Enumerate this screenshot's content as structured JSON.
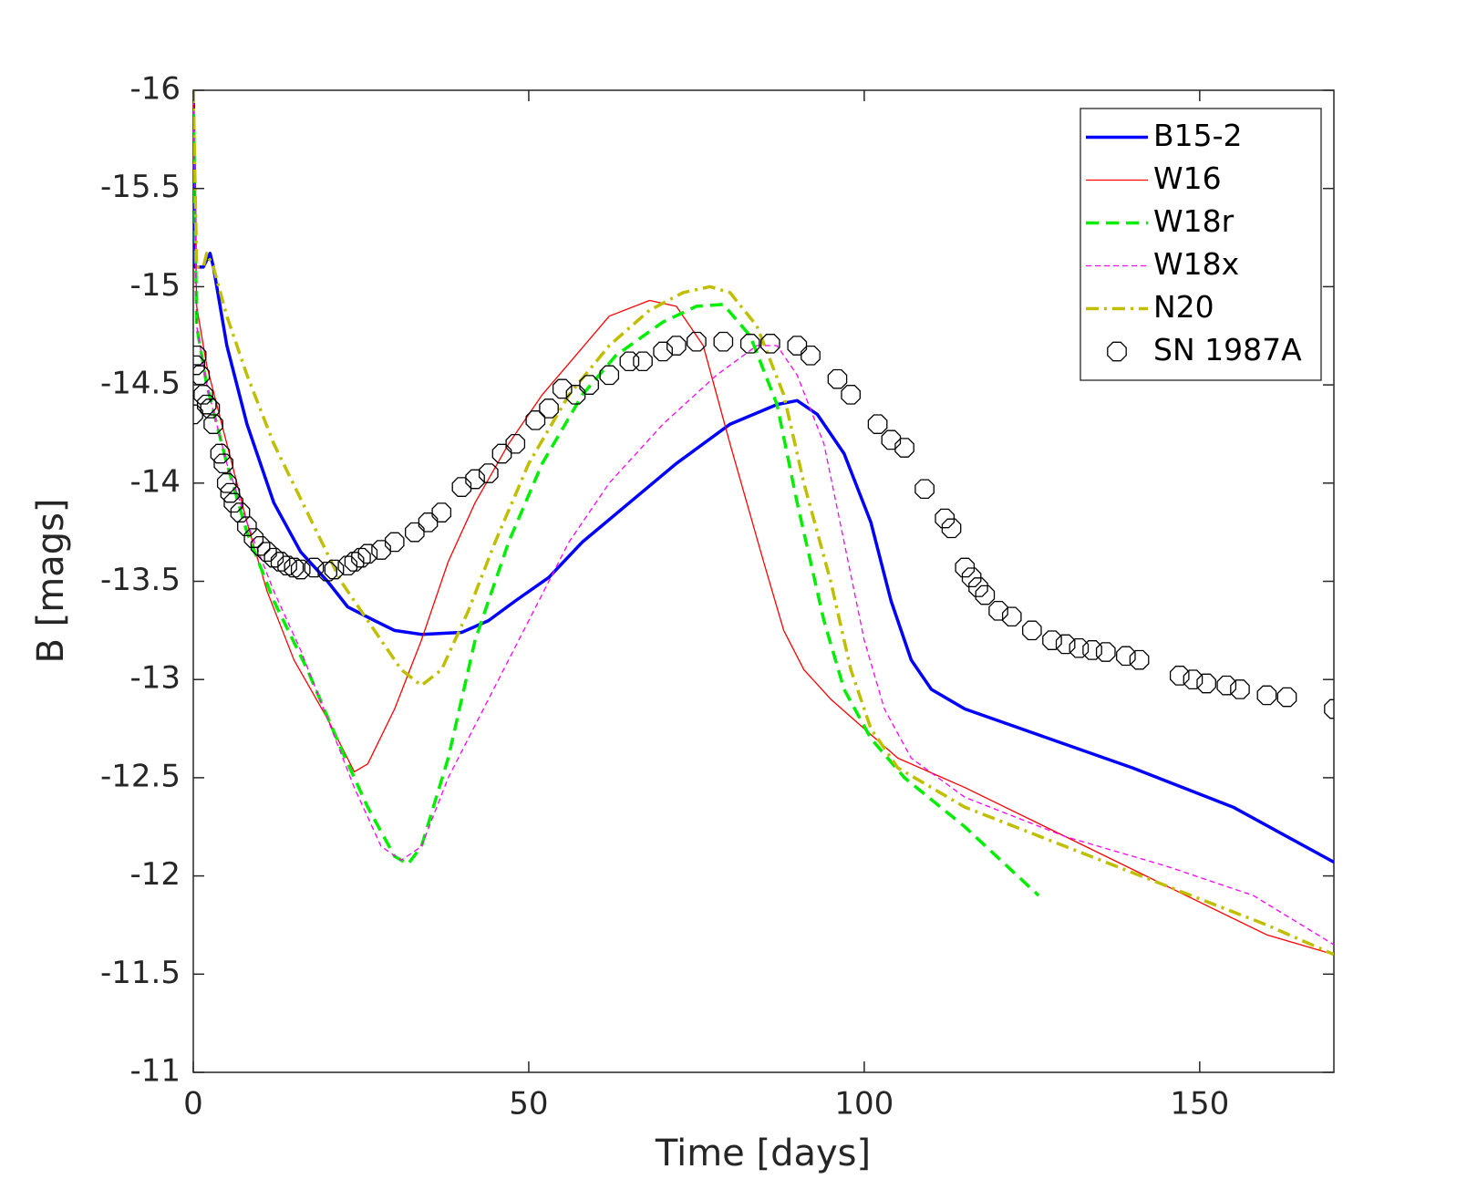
{
  "chart_data": {
    "type": "line",
    "xlabel": "Time [days]",
    "ylabel": "B [mags]",
    "xlim": [
      0,
      170
    ],
    "ylim": [
      -16,
      -11
    ],
    "y_inverted": true,
    "xticks": [
      0,
      50,
      100,
      150
    ],
    "yticks": [
      -16,
      -15.5,
      -15,
      -14.5,
      -14,
      -13.5,
      -13,
      -12.5,
      -12,
      -11.5,
      -11
    ],
    "grid": false,
    "legend": "upper right",
    "series": [
      {
        "name": "B15-2",
        "color": "#0000ff",
        "linestyle": "solid",
        "linewidth": 3.5,
        "x": [
          0,
          0.3,
          1.5,
          2.5,
          3,
          5,
          8,
          12,
          16,
          20,
          23,
          27,
          30,
          34,
          40,
          44,
          48,
          53,
          58,
          65,
          72,
          80,
          87,
          90,
          93,
          97,
          101,
          104,
          107,
          110,
          115,
          125,
          140,
          155,
          170
        ],
        "values": [
          -16,
          -15.1,
          -15.1,
          -15.17,
          -15.1,
          -14.7,
          -14.3,
          -13.9,
          -13.65,
          -13.5,
          -13.37,
          -13.3,
          -13.25,
          -13.23,
          -13.24,
          -13.3,
          -13.4,
          -13.52,
          -13.7,
          -13.9,
          -14.1,
          -14.3,
          -14.4,
          -14.42,
          -14.35,
          -14.15,
          -13.8,
          -13.4,
          -13.1,
          -12.95,
          -12.85,
          -12.73,
          -12.55,
          -12.35,
          -12.07
        ]
      },
      {
        "name": "W16",
        "color": "#ff0000",
        "linestyle": "solid",
        "linewidth": 1.3,
        "x": [
          0,
          0.5,
          2,
          5,
          8,
          11,
          15,
          20,
          24,
          26,
          30,
          34,
          38,
          42,
          47,
          52,
          57,
          62,
          68,
          72,
          76,
          80,
          85,
          88,
          91,
          95,
          100,
          105,
          115,
          130,
          145,
          160,
          170
        ],
        "values": [
          -16,
          -14.9,
          -14.6,
          -14.2,
          -13.8,
          -13.45,
          -13.1,
          -12.8,
          -12.53,
          -12.57,
          -12.85,
          -13.2,
          -13.6,
          -13.9,
          -14.2,
          -14.45,
          -14.65,
          -14.85,
          -14.93,
          -14.9,
          -14.7,
          -14.2,
          -13.6,
          -13.25,
          -13.05,
          -12.9,
          -12.75,
          -12.6,
          -12.45,
          -12.2,
          -11.95,
          -11.7,
          -11.6
        ]
      },
      {
        "name": "W18r",
        "color": "#00ee00",
        "linestyle": "dashed",
        "linewidth": 3.5,
        "x": [
          0,
          0.5,
          2,
          5,
          8,
          12,
          17,
          22,
          26,
          30,
          32,
          34,
          38,
          42,
          47,
          52,
          58,
          63,
          70,
          75,
          79,
          83,
          87,
          90,
          94,
          97,
          101,
          106,
          115,
          126
        ],
        "values": [
          -16,
          -14.8,
          -14.5,
          -14.1,
          -13.75,
          -13.4,
          -13.05,
          -12.65,
          -12.35,
          -12.1,
          -12.06,
          -12.15,
          -12.6,
          -13.2,
          -13.7,
          -14.1,
          -14.45,
          -14.65,
          -14.82,
          -14.9,
          -14.91,
          -14.75,
          -14.4,
          -13.9,
          -13.3,
          -12.95,
          -12.7,
          -12.5,
          -12.25,
          -11.9
        ]
      },
      {
        "name": "W18x",
        "color": "#ff00ff",
        "linestyle": "dotted",
        "linewidth": 1.3,
        "x": [
          0,
          0.5,
          2,
          5,
          8,
          12,
          16,
          20,
          24,
          28,
          31,
          34,
          38,
          44,
          50,
          56,
          62,
          70,
          78,
          84,
          87,
          90,
          94,
          97,
          100,
          103,
          107,
          115,
          130,
          145,
          158,
          170
        ],
        "values": [
          -16,
          -14.8,
          -14.5,
          -14.1,
          -13.8,
          -13.45,
          -13.15,
          -12.8,
          -12.45,
          -12.15,
          -12.08,
          -12.15,
          -12.5,
          -12.9,
          -13.3,
          -13.7,
          -14.0,
          -14.3,
          -14.55,
          -14.7,
          -14.7,
          -14.55,
          -14.2,
          -13.7,
          -13.2,
          -12.85,
          -12.6,
          -12.4,
          -12.2,
          -12.05,
          -11.9,
          -11.65
        ]
      },
      {
        "name": "N20",
        "color": "#bfbf00",
        "linestyle": "dashdot",
        "linewidth": 3.5,
        "x": [
          0,
          0.5,
          1.5,
          2,
          3,
          5,
          8,
          12,
          17,
          22,
          27,
          31,
          34,
          37,
          41,
          45,
          50,
          56,
          62,
          68,
          73,
          77,
          80,
          84,
          88,
          91,
          95,
          98,
          101,
          105,
          115,
          130,
          145,
          160,
          170
        ],
        "values": [
          -16,
          -15.1,
          -15.1,
          -15.17,
          -15.1,
          -14.85,
          -14.55,
          -14.2,
          -13.85,
          -13.5,
          -13.25,
          -13.05,
          -12.97,
          -13.05,
          -13.35,
          -13.7,
          -14.1,
          -14.45,
          -14.7,
          -14.88,
          -14.97,
          -15.0,
          -14.97,
          -14.8,
          -14.45,
          -14.0,
          -13.5,
          -13.05,
          -12.75,
          -12.55,
          -12.35,
          -12.15,
          -11.95,
          -11.75,
          -11.6
        ]
      },
      {
        "name": "SN 1987A",
        "color": "#000000",
        "marker": "o",
        "x": [
          0,
          0.3,
          0.5,
          1,
          1.5,
          2,
          2.5,
          3,
          4,
          4.5,
          5,
          5.5,
          6,
          7,
          8,
          9,
          10,
          11,
          12,
          13,
          14,
          15,
          16,
          18,
          20,
          21,
          23,
          24,
          25,
          26,
          28,
          30,
          33,
          35,
          37,
          40,
          42,
          44,
          46,
          48,
          51,
          53,
          55,
          57,
          59,
          62,
          65,
          67,
          70,
          72,
          75,
          79,
          83,
          86,
          90,
          92,
          96,
          98,
          102,
          104,
          106,
          109,
          112,
          113,
          115,
          116,
          117,
          118,
          120,
          122,
          125,
          128,
          130,
          132,
          134,
          136,
          139,
          141,
          147,
          149,
          151,
          154,
          156,
          160,
          163,
          170
        ],
        "values": [
          -14.35,
          -14.6,
          -14.65,
          -14.55,
          -14.45,
          -14.4,
          -14.38,
          -14.3,
          -14.15,
          -14.1,
          -14.0,
          -13.95,
          -13.9,
          -13.85,
          -13.78,
          -13.72,
          -13.68,
          -13.65,
          -13.62,
          -13.6,
          -13.58,
          -13.57,
          -13.56,
          -13.57,
          -13.55,
          -13.56,
          -13.58,
          -13.6,
          -13.62,
          -13.64,
          -13.66,
          -13.7,
          -13.75,
          -13.8,
          -13.85,
          -13.98,
          -14.02,
          -14.05,
          -14.15,
          -14.2,
          -14.32,
          -14.38,
          -14.48,
          -14.45,
          -14.5,
          -14.55,
          -14.62,
          -14.62,
          -14.67,
          -14.7,
          -14.72,
          -14.72,
          -14.71,
          -14.71,
          -14.7,
          -14.65,
          -14.53,
          -14.45,
          -14.3,
          -14.22,
          -14.18,
          -13.97,
          -13.82,
          -13.77,
          -13.57,
          -13.52,
          -13.47,
          -13.43,
          -13.35,
          -13.32,
          -13.25,
          -13.2,
          -13.18,
          -13.16,
          -13.15,
          -13.14,
          -13.12,
          -13.1,
          -13.02,
          -13.0,
          -12.98,
          -12.97,
          -12.95,
          -12.92,
          -12.91,
          -12.85
        ]
      }
    ]
  }
}
